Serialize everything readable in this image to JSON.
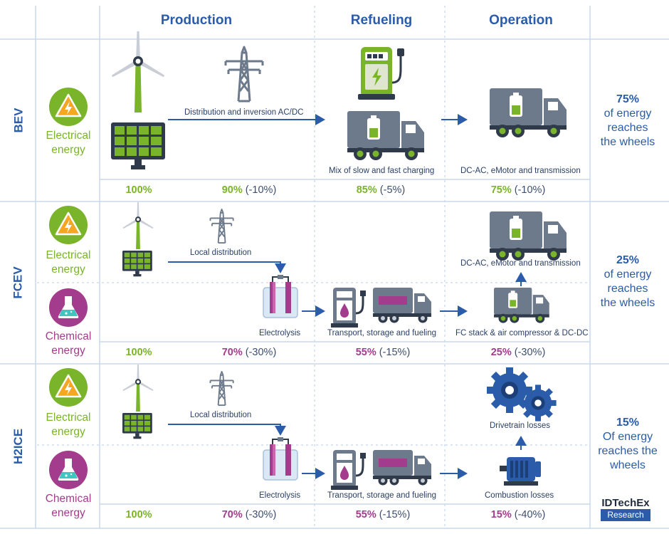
{
  "headers": [
    "Production",
    "Refueling",
    "Operation"
  ],
  "energy_labels": {
    "electrical_line1": "Electrical",
    "electrical_line2": "energy",
    "chemical_line1": "Chemical",
    "chemical_line2": "energy"
  },
  "rows": [
    {
      "label": "BEV",
      "captions": {
        "distribution": "Distribution and inversion AC/DC",
        "refuel": "Mix of slow and fast charging",
        "operation": "DC-AC, eMotor and transmission"
      },
      "percentages": [
        {
          "value": "100%",
          "delta": "",
          "color": "green"
        },
        {
          "value": "90%",
          "delta": "(-10%)",
          "color": "green"
        },
        {
          "value": "85%",
          "delta": "(-5%)",
          "color": "green"
        },
        {
          "value": "75%",
          "delta": "(-10%)",
          "color": "green"
        }
      ],
      "summary": {
        "pct": "75%",
        "line1": "of energy",
        "line2": "reaches",
        "line3": "the wheels"
      }
    },
    {
      "label": "FCEV",
      "captions": {
        "distribution": "Local distribution",
        "electrolysis": "Electrolysis",
        "refuel": "Transport, storage and fueling",
        "operation_bottom": "FC stack & air compressor & DC-DC",
        "operation_top": "DC-AC, eMotor and transmission"
      },
      "percentages": [
        {
          "value": "100%",
          "delta": "",
          "color": "green"
        },
        {
          "value": "70%",
          "delta": "(-30%)",
          "color": "magenta"
        },
        {
          "value": "55%",
          "delta": "(-15%)",
          "color": "magenta"
        },
        {
          "value": "25%",
          "delta": "(-30%)",
          "color": "magenta"
        }
      ],
      "summary": {
        "pct": "25%",
        "line1": "of energy",
        "line2": "reaches",
        "line3": "the wheels"
      }
    },
    {
      "label": "H2ICE",
      "captions": {
        "distribution": "Local distribution",
        "electrolysis": "Electrolysis",
        "refuel": "Transport, storage and fueling",
        "drivetrain": "Drivetrain losses",
        "combustion": "Combustion losses"
      },
      "percentages": [
        {
          "value": "100%",
          "delta": "",
          "color": "green"
        },
        {
          "value": "70%",
          "delta": "(-30%)",
          "color": "magenta"
        },
        {
          "value": "55%",
          "delta": "(-15%)",
          "color": "magenta"
        },
        {
          "value": "15%",
          "delta": "(-40%)",
          "color": "magenta"
        }
      ],
      "summary": {
        "pct": "15%",
        "line1": "Of energy",
        "line2": "reaches the",
        "line3": "wheels"
      }
    }
  ],
  "logo": {
    "brand": "IDTechEx",
    "sub": "Research"
  },
  "colors": {
    "accent": "#2a5caa",
    "green": "#79b42a",
    "magenta": "#a33c8c",
    "orange": "#f5a623",
    "truck": "#6d7a8c"
  }
}
